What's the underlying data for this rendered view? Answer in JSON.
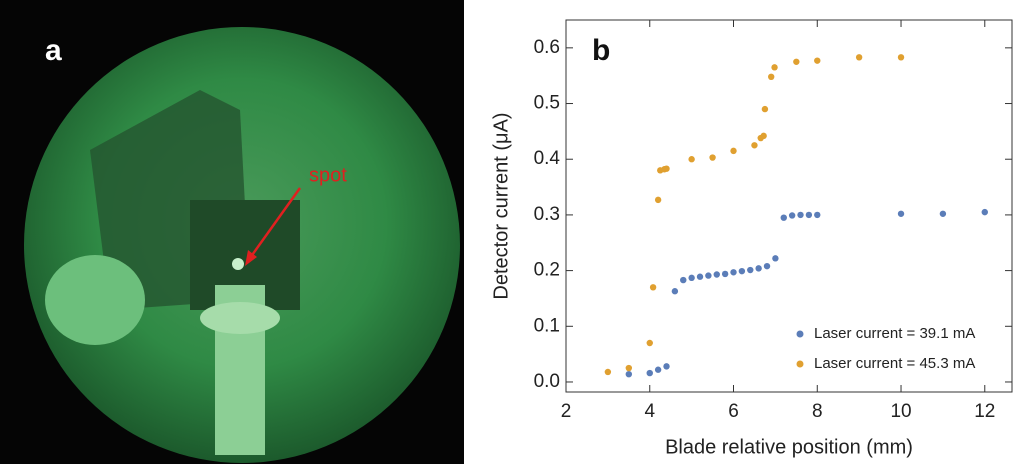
{
  "panel_a": {
    "label": "a",
    "annotation": "spot"
  },
  "chart_data": {
    "type": "scatter",
    "panel_label": "b",
    "x_label": "Blade relative position (mm)",
    "y_label": "Detector current (μA)",
    "xlim": [
      2,
      12.65
    ],
    "ylim": [
      -0.018,
      0.65
    ],
    "xticks": [
      2,
      4,
      6,
      8,
      10,
      12
    ],
    "yticks": [
      {
        "value": 0,
        "label": "0.0"
      },
      0.1,
      0.2,
      0.3,
      0.4,
      0.5,
      0.6
    ],
    "legend": "lower right",
    "series": [
      {
        "name": "Laser current = 39.1 mA",
        "color": "#5b7db8",
        "x": [
          3.5,
          4.0,
          4.2,
          4.4,
          4.6,
          4.8,
          5.0,
          5.2,
          5.4,
          5.6,
          5.8,
          6.0,
          6.2,
          6.4,
          6.6,
          6.8,
          7.0,
          7.2,
          7.4,
          7.6,
          7.8,
          8.0,
          10,
          11,
          12
        ],
        "values": [
          0.014,
          0.016,
          0.022,
          0.028,
          0.163,
          0.183,
          0.187,
          0.189,
          0.191,
          0.193,
          0.194,
          0.197,
          0.199,
          0.201,
          0.204,
          0.208,
          0.222,
          0.295,
          0.299,
          0.3,
          0.3,
          0.3,
          0.302,
          0.302,
          0.305
        ]
      },
      {
        "name": "Laser current = 45.3 mA",
        "color": "#e0a030",
        "x": [
          3.0,
          3.5,
          4.0,
          4.08,
          4.2,
          4.25,
          4.35,
          4.4,
          5.0,
          5.5,
          6.0,
          6.5,
          6.65,
          6.72,
          6.75,
          6.9,
          6.98,
          7.5,
          8.0,
          9.0,
          10.0
        ],
        "values": [
          0.018,
          0.025,
          0.07,
          0.17,
          0.327,
          0.38,
          0.382,
          0.383,
          0.4,
          0.403,
          0.415,
          0.425,
          0.438,
          0.442,
          0.49,
          0.548,
          0.565,
          0.575,
          0.577,
          0.583,
          0.583
        ]
      }
    ]
  }
}
